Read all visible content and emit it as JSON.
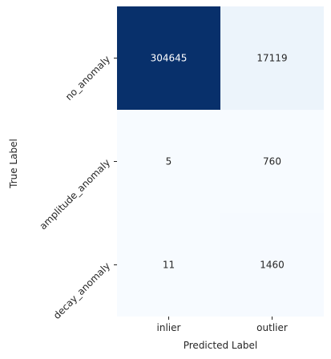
{
  "chart_data": {
    "type": "heatmap",
    "title": "",
    "xlabel": "Predicted Label",
    "ylabel": "True Label",
    "x_categories": [
      "inlier",
      "outlier"
    ],
    "y_categories": [
      "no_anomaly",
      "amplitude_anomaly",
      "decay_anomaly"
    ],
    "values": [
      [
        304645,
        17119
      ],
      [
        5,
        760
      ],
      [
        11,
        1460
      ]
    ],
    "colormap": "Blues",
    "colorbar": false,
    "grid": false
  }
}
